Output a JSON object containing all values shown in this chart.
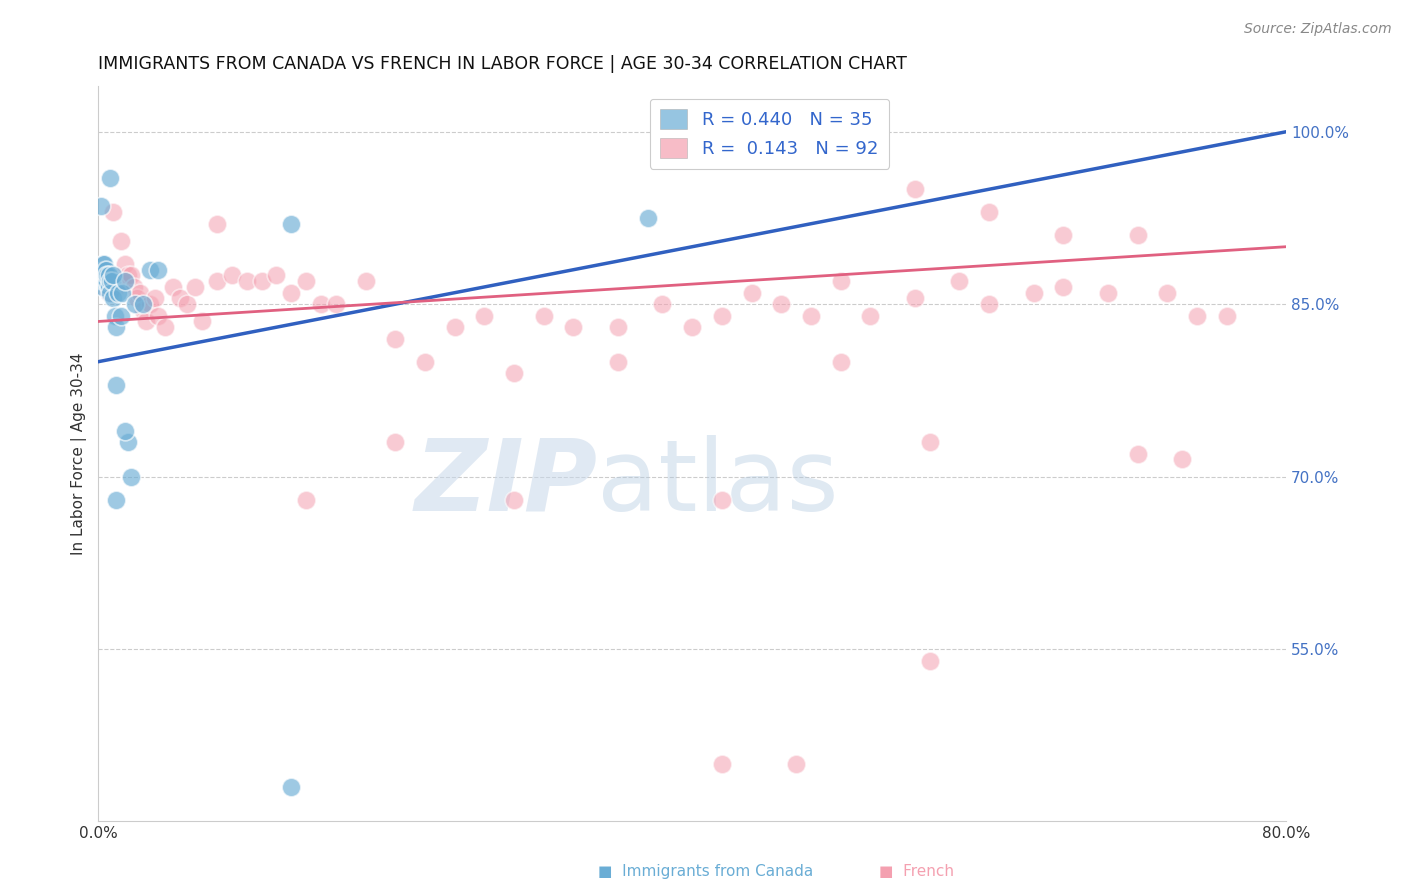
{
  "title": "IMMIGRANTS FROM CANADA VS FRENCH IN LABOR FORCE | AGE 30-34 CORRELATION CHART",
  "source": "Source: ZipAtlas.com",
  "ylabel": "In Labor Force | Age 30-34",
  "x_min": 0.0,
  "x_max": 0.8,
  "y_min": 0.4,
  "y_max": 1.04,
  "right_yticks": [
    1.0,
    0.85,
    0.7,
    0.55
  ],
  "right_ytick_labels": [
    "100.0%",
    "85.0%",
    "70.0%",
    "55.0%"
  ],
  "blue_R": 0.44,
  "blue_N": 35,
  "pink_R": 0.143,
  "pink_N": 92,
  "blue_color": "#6aadd5",
  "pink_color": "#f4a0b0",
  "blue_line_color": "#3060c0",
  "pink_line_color": "#e06080",
  "watermark_zip": "ZIP",
  "watermark_atlas": "atlas",
  "blue_scatter_x": [
    0.001,
    0.002,
    0.002,
    0.003,
    0.003,
    0.003,
    0.004,
    0.004,
    0.004,
    0.005,
    0.005,
    0.005,
    0.006,
    0.006,
    0.007,
    0.007,
    0.008,
    0.008,
    0.009,
    0.01,
    0.01,
    0.011,
    0.012,
    0.013,
    0.015,
    0.016,
    0.018,
    0.02,
    0.022,
    0.025,
    0.03,
    0.035,
    0.04,
    0.13,
    0.37
  ],
  "blue_scatter_y": [
    0.875,
    0.87,
    0.88,
    0.865,
    0.875,
    0.885,
    0.87,
    0.88,
    0.885,
    0.87,
    0.875,
    0.88,
    0.87,
    0.875,
    0.865,
    0.875,
    0.87,
    0.86,
    0.87,
    0.855,
    0.875,
    0.84,
    0.83,
    0.86,
    0.84,
    0.86,
    0.87,
    0.73,
    0.7,
    0.85,
    0.85,
    0.88,
    0.88,
    0.92,
    0.925
  ],
  "blue_extra_x": [
    0.002,
    0.008,
    0.012,
    0.018,
    0.012,
    0.13
  ],
  "blue_extra_y": [
    0.935,
    0.96,
    0.78,
    0.74,
    0.68,
    0.43
  ],
  "pink_scatter_x": [
    0.002,
    0.003,
    0.003,
    0.004,
    0.004,
    0.005,
    0.005,
    0.006,
    0.006,
    0.007,
    0.007,
    0.008,
    0.008,
    0.009,
    0.01,
    0.01,
    0.011,
    0.012,
    0.013,
    0.015,
    0.016,
    0.017,
    0.018,
    0.02,
    0.022,
    0.024,
    0.026,
    0.028,
    0.03,
    0.032,
    0.035,
    0.038,
    0.04,
    0.045,
    0.05,
    0.055,
    0.06,
    0.065,
    0.07,
    0.08,
    0.09,
    0.1,
    0.11,
    0.12,
    0.13,
    0.14,
    0.15,
    0.16,
    0.18,
    0.2,
    0.22,
    0.24,
    0.26,
    0.28,
    0.3,
    0.32,
    0.35,
    0.38,
    0.4,
    0.42,
    0.44,
    0.46,
    0.48,
    0.5,
    0.52,
    0.55,
    0.58,
    0.6,
    0.63,
    0.65,
    0.68,
    0.7,
    0.72,
    0.74,
    0.76
  ],
  "pink_scatter_y": [
    0.88,
    0.875,
    0.865,
    0.88,
    0.87,
    0.88,
    0.865,
    0.875,
    0.87,
    0.87,
    0.86,
    0.875,
    0.87,
    0.87,
    0.875,
    0.865,
    0.87,
    0.865,
    0.87,
    0.905,
    0.87,
    0.87,
    0.885,
    0.875,
    0.875,
    0.865,
    0.855,
    0.86,
    0.845,
    0.835,
    0.85,
    0.855,
    0.84,
    0.83,
    0.865,
    0.855,
    0.85,
    0.865,
    0.835,
    0.87,
    0.875,
    0.87,
    0.87,
    0.875,
    0.86,
    0.87,
    0.85,
    0.85,
    0.87,
    0.82,
    0.8,
    0.83,
    0.84,
    0.79,
    0.84,
    0.83,
    0.83,
    0.85,
    0.83,
    0.84,
    0.86,
    0.85,
    0.84,
    0.87,
    0.84,
    0.855,
    0.87,
    0.85,
    0.86,
    0.865,
    0.86,
    0.72,
    0.86,
    0.84,
    0.84
  ],
  "pink_extra_x": [
    0.55,
    0.6,
    0.65,
    0.7,
    0.01,
    0.08,
    0.42,
    0.47,
    0.14,
    0.2,
    0.28,
    0.35,
    0.5,
    0.56,
    0.42,
    0.56,
    0.73
  ],
  "pink_extra_y": [
    0.95,
    0.93,
    0.91,
    0.91,
    0.93,
    0.92,
    0.45,
    0.45,
    0.68,
    0.73,
    0.68,
    0.8,
    0.8,
    0.73,
    0.68,
    0.54,
    0.715
  ],
  "blue_trend_x": [
    0.0,
    0.8
  ],
  "blue_trend_y": [
    0.8,
    1.0
  ],
  "pink_trend_x": [
    0.0,
    0.8
  ],
  "pink_trend_y": [
    0.835,
    0.9
  ]
}
